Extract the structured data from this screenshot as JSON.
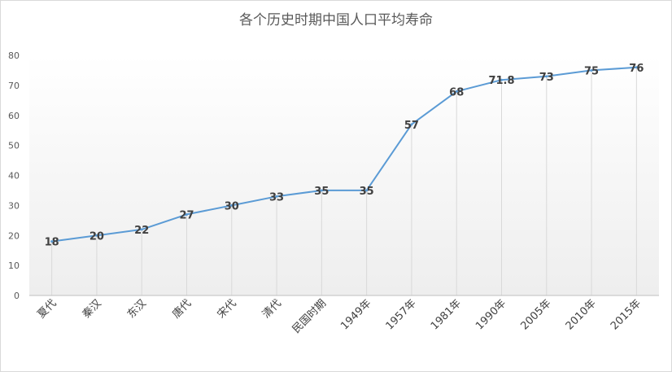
{
  "chart_data": {
    "type": "line",
    "title": "各个历史时期中国人口平均寿命",
    "xlabel": "",
    "ylabel": "",
    "categories": [
      "夏代",
      "秦汉",
      "东汉",
      "唐代",
      "宋代",
      "清代",
      "民国时期",
      "1949年",
      "1957年",
      "1981年",
      "1990年",
      "2005年",
      "2010年",
      "2015年"
    ],
    "series": [
      {
        "values": [
          18,
          20,
          22,
          27,
          30,
          33,
          35,
          35,
          57,
          68,
          71.8,
          73,
          75,
          76
        ],
        "labels": [
          "18",
          "20",
          "22",
          "27",
          "30",
          "33",
          "35",
          "35",
          "57",
          "68",
          "71.8",
          "73",
          "75",
          "76"
        ],
        "color": "#5b9bd5"
      }
    ],
    "ylim": [
      0,
      80
    ],
    "yticks": [
      "0",
      "10",
      "20",
      "30",
      "40",
      "50",
      "60",
      "70",
      "80"
    ],
    "grid": false,
    "legend": "none"
  }
}
